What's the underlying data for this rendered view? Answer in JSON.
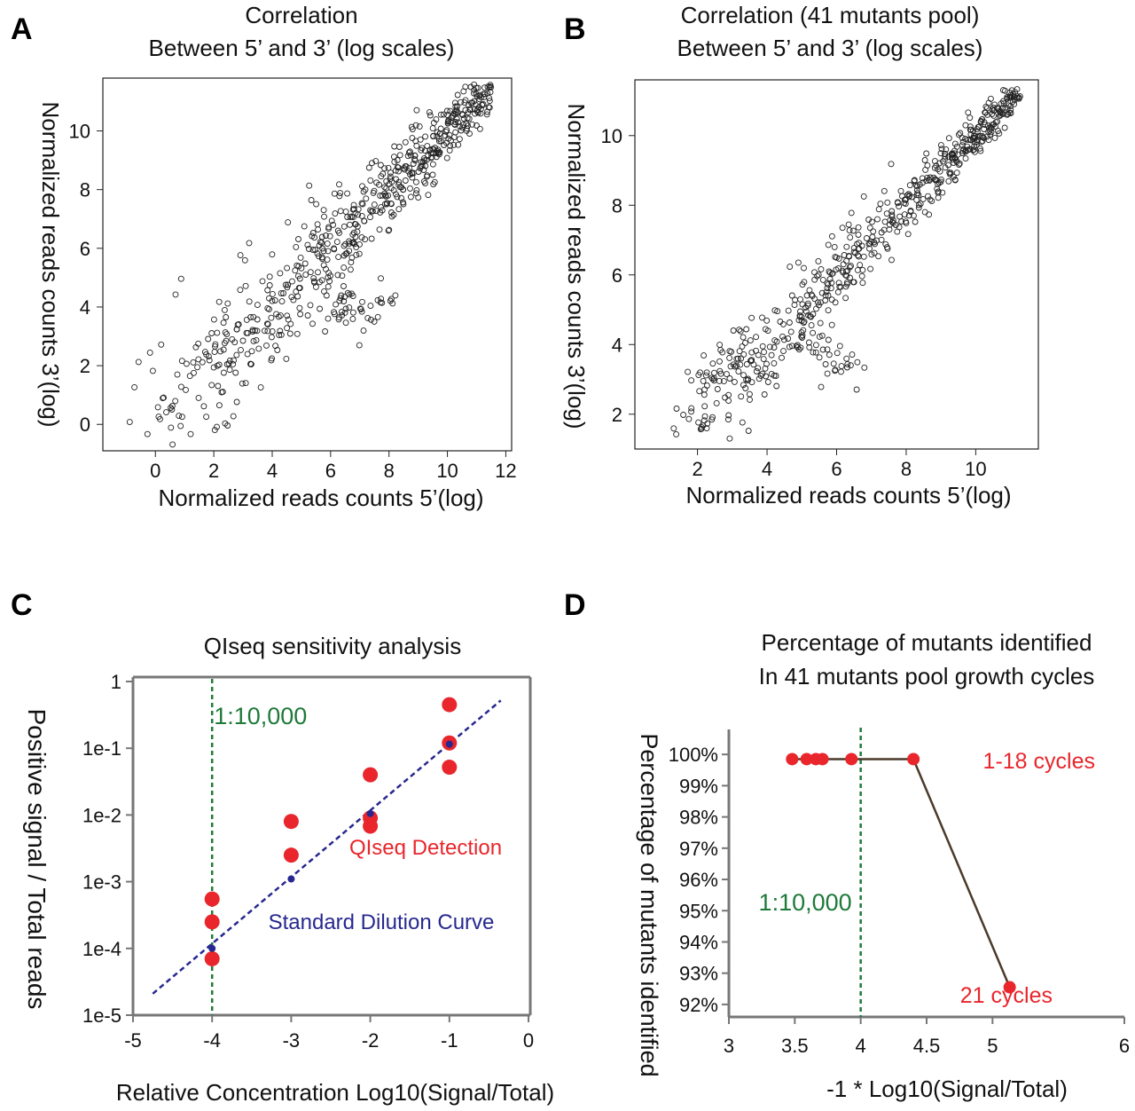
{
  "colors": {
    "red": "#e8262c",
    "blue": "#27288f",
    "green": "#1f7a3a",
    "line_brown": "#4a3a2a",
    "axis_gray": "#777777"
  },
  "panels": {
    "A": {
      "letter": "A"
    },
    "B": {
      "letter": "B"
    },
    "C": {
      "letter": "C"
    },
    "D": {
      "letter": "D"
    }
  },
  "chart_data": [
    {
      "panel": "A",
      "type": "scatter",
      "title": [
        "Correlation",
        "Between 5’ and 3’ (log scales)"
      ],
      "xlabel": "Normalized reads counts 5’(log)",
      "ylabel": "Normalized reads counts 3’(log)",
      "xlim": [
        -1.8,
        12.2
      ],
      "ylim": [
        -0.9,
        11.8
      ],
      "xticks": [
        0,
        2,
        4,
        6,
        8,
        10,
        12
      ],
      "yticks": [
        0,
        2,
        4,
        6,
        8,
        10
      ],
      "generator": {
        "n": 620,
        "xmin": -1.3,
        "xmax": 11.5,
        "spread": 1.3,
        "seed": 7,
        "outlier_cluster": [
          [
            7.0,
            3.6
          ],
          [
            7.5,
            4.3
          ],
          [
            6.3,
            4.0
          ]
        ]
      }
    },
    {
      "panel": "B",
      "type": "scatter",
      "title": [
        "Correlation (41 mutants pool)",
        "Between 5’ and 3’ (log scales)"
      ],
      "xlabel": "Normalized reads counts 5’(log)",
      "ylabel": "Normalized reads counts 3’(log)",
      "xlim": [
        0.2,
        11.8
      ],
      "ylim": [
        1.0,
        11.6
      ],
      "xticks": [
        2,
        4,
        6,
        8,
        10
      ],
      "yticks": [
        2,
        4,
        6,
        8,
        10
      ],
      "generator": {
        "n": 560,
        "xmin": 0.6,
        "xmax": 11.3,
        "spread": 0.85,
        "seed": 19,
        "outlier_cluster": [
          [
            5.6,
            3.8
          ],
          [
            6.0,
            3.6
          ],
          [
            2.7,
            3.0
          ],
          [
            3.2,
            3.4
          ]
        ]
      }
    },
    {
      "panel": "C",
      "type": "scatter",
      "title": "QIseq sensitivity analysis",
      "xlabel": "Relative Concentration Log10(Signal/Total)",
      "ylabel": "Positive signal / Total reads",
      "xlim": [
        -5,
        0
      ],
      "ylim_log10": [
        -5,
        0
      ],
      "xticks": [
        "-5",
        "-4",
        "-3",
        "-2",
        "-1",
        "0"
      ],
      "yticks": [
        "1e-5",
        "1e-4",
        "1e-3",
        "1e-2",
        "1e-1",
        "1"
      ],
      "series": [
        {
          "name": "QIseq Detection",
          "color": "red",
          "points": [
            [
              -4,
              0.00055
            ],
            [
              -4,
              0.00025
            ],
            [
              -4,
              7e-05
            ],
            [
              -3,
              0.008
            ],
            [
              -3,
              0.0025
            ],
            [
              -2,
              0.04
            ],
            [
              -2,
              0.009
            ],
            [
              -2,
              0.0068
            ],
            [
              -1,
              0.45
            ],
            [
              -1,
              0.12
            ],
            [
              -1,
              0.052
            ]
          ]
        },
        {
          "name": "Standard Dilution Curve",
          "color": "blue",
          "points": [
            [
              -4,
              0.0001
            ],
            [
              -3,
              0.0011
            ],
            [
              -2,
              0.0105
            ],
            [
              -1,
              0.115
            ]
          ],
          "fit_line": [
            [
              -4.75,
              2.1e-05
            ],
            [
              -0.35,
              0.52
            ]
          ]
        }
      ],
      "vline": {
        "x": -4,
        "label": "1:10,000"
      }
    },
    {
      "panel": "D",
      "type": "line",
      "title": [
        "Percentage of mutants identified",
        "In 41 mutants pool growth cycles"
      ],
      "xlabel": "-1 * Log10(Signal/Total)",
      "ylabel": "Percentage of mutants identified",
      "xlim": [
        3,
        6
      ],
      "ylim": [
        91.6,
        100.8
      ],
      "xticks": [
        "3",
        "3.5",
        "4",
        "4.5",
        "5",
        "6"
      ],
      "xtick_values": [
        3,
        3.5,
        4,
        4.5,
        5,
        6
      ],
      "yticks": [
        "92%",
        "93%",
        "94%",
        "95%",
        "96%",
        "97%",
        "98%",
        "99%",
        "100%"
      ],
      "ytick_values": [
        92,
        93,
        94,
        95,
        96,
        97,
        98,
        99,
        100
      ],
      "points": [
        [
          3.48,
          99.85
        ],
        [
          3.59,
          99.85
        ],
        [
          3.66,
          99.85
        ],
        [
          3.71,
          99.85
        ],
        [
          3.93,
          99.85
        ],
        [
          4.4,
          99.85
        ],
        [
          5.13,
          92.55
        ]
      ],
      "vline": {
        "x": 4,
        "label": "1:10,000"
      },
      "annotations": [
        "1-18 cycles",
        "21 cycles"
      ]
    }
  ]
}
